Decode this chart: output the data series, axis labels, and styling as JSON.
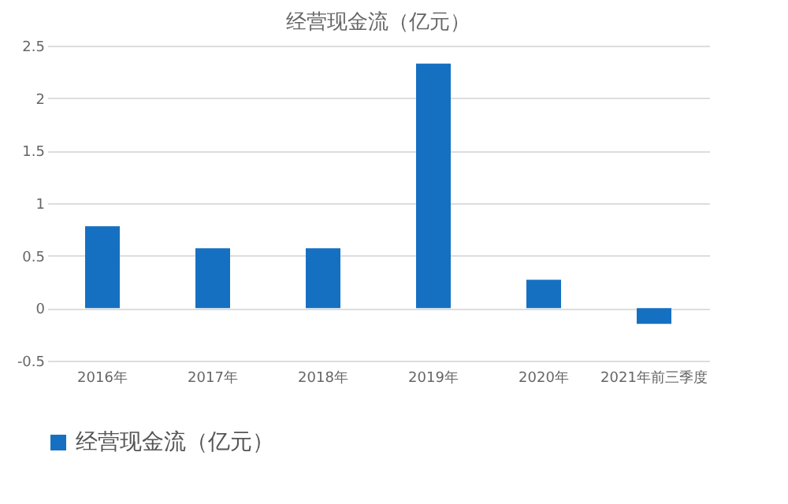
{
  "chart_data": {
    "type": "bar",
    "title": "经营现金流（亿元）",
    "categories": [
      "2016年",
      "2017年",
      "2018年",
      "2019年",
      "2020年",
      "2021年前三季度"
    ],
    "series": [
      {
        "name": "经营现金流（亿元）",
        "color": "#1670c2",
        "values": [
          0.78,
          0.57,
          0.57,
          2.33,
          0.27,
          -0.15
        ]
      }
    ],
    "ylim": [
      -0.5,
      2.5
    ],
    "yticks": [
      -0.5,
      0,
      0.5,
      1,
      1.5,
      2,
      2.5
    ],
    "grid": "y",
    "legend": "bottom"
  }
}
